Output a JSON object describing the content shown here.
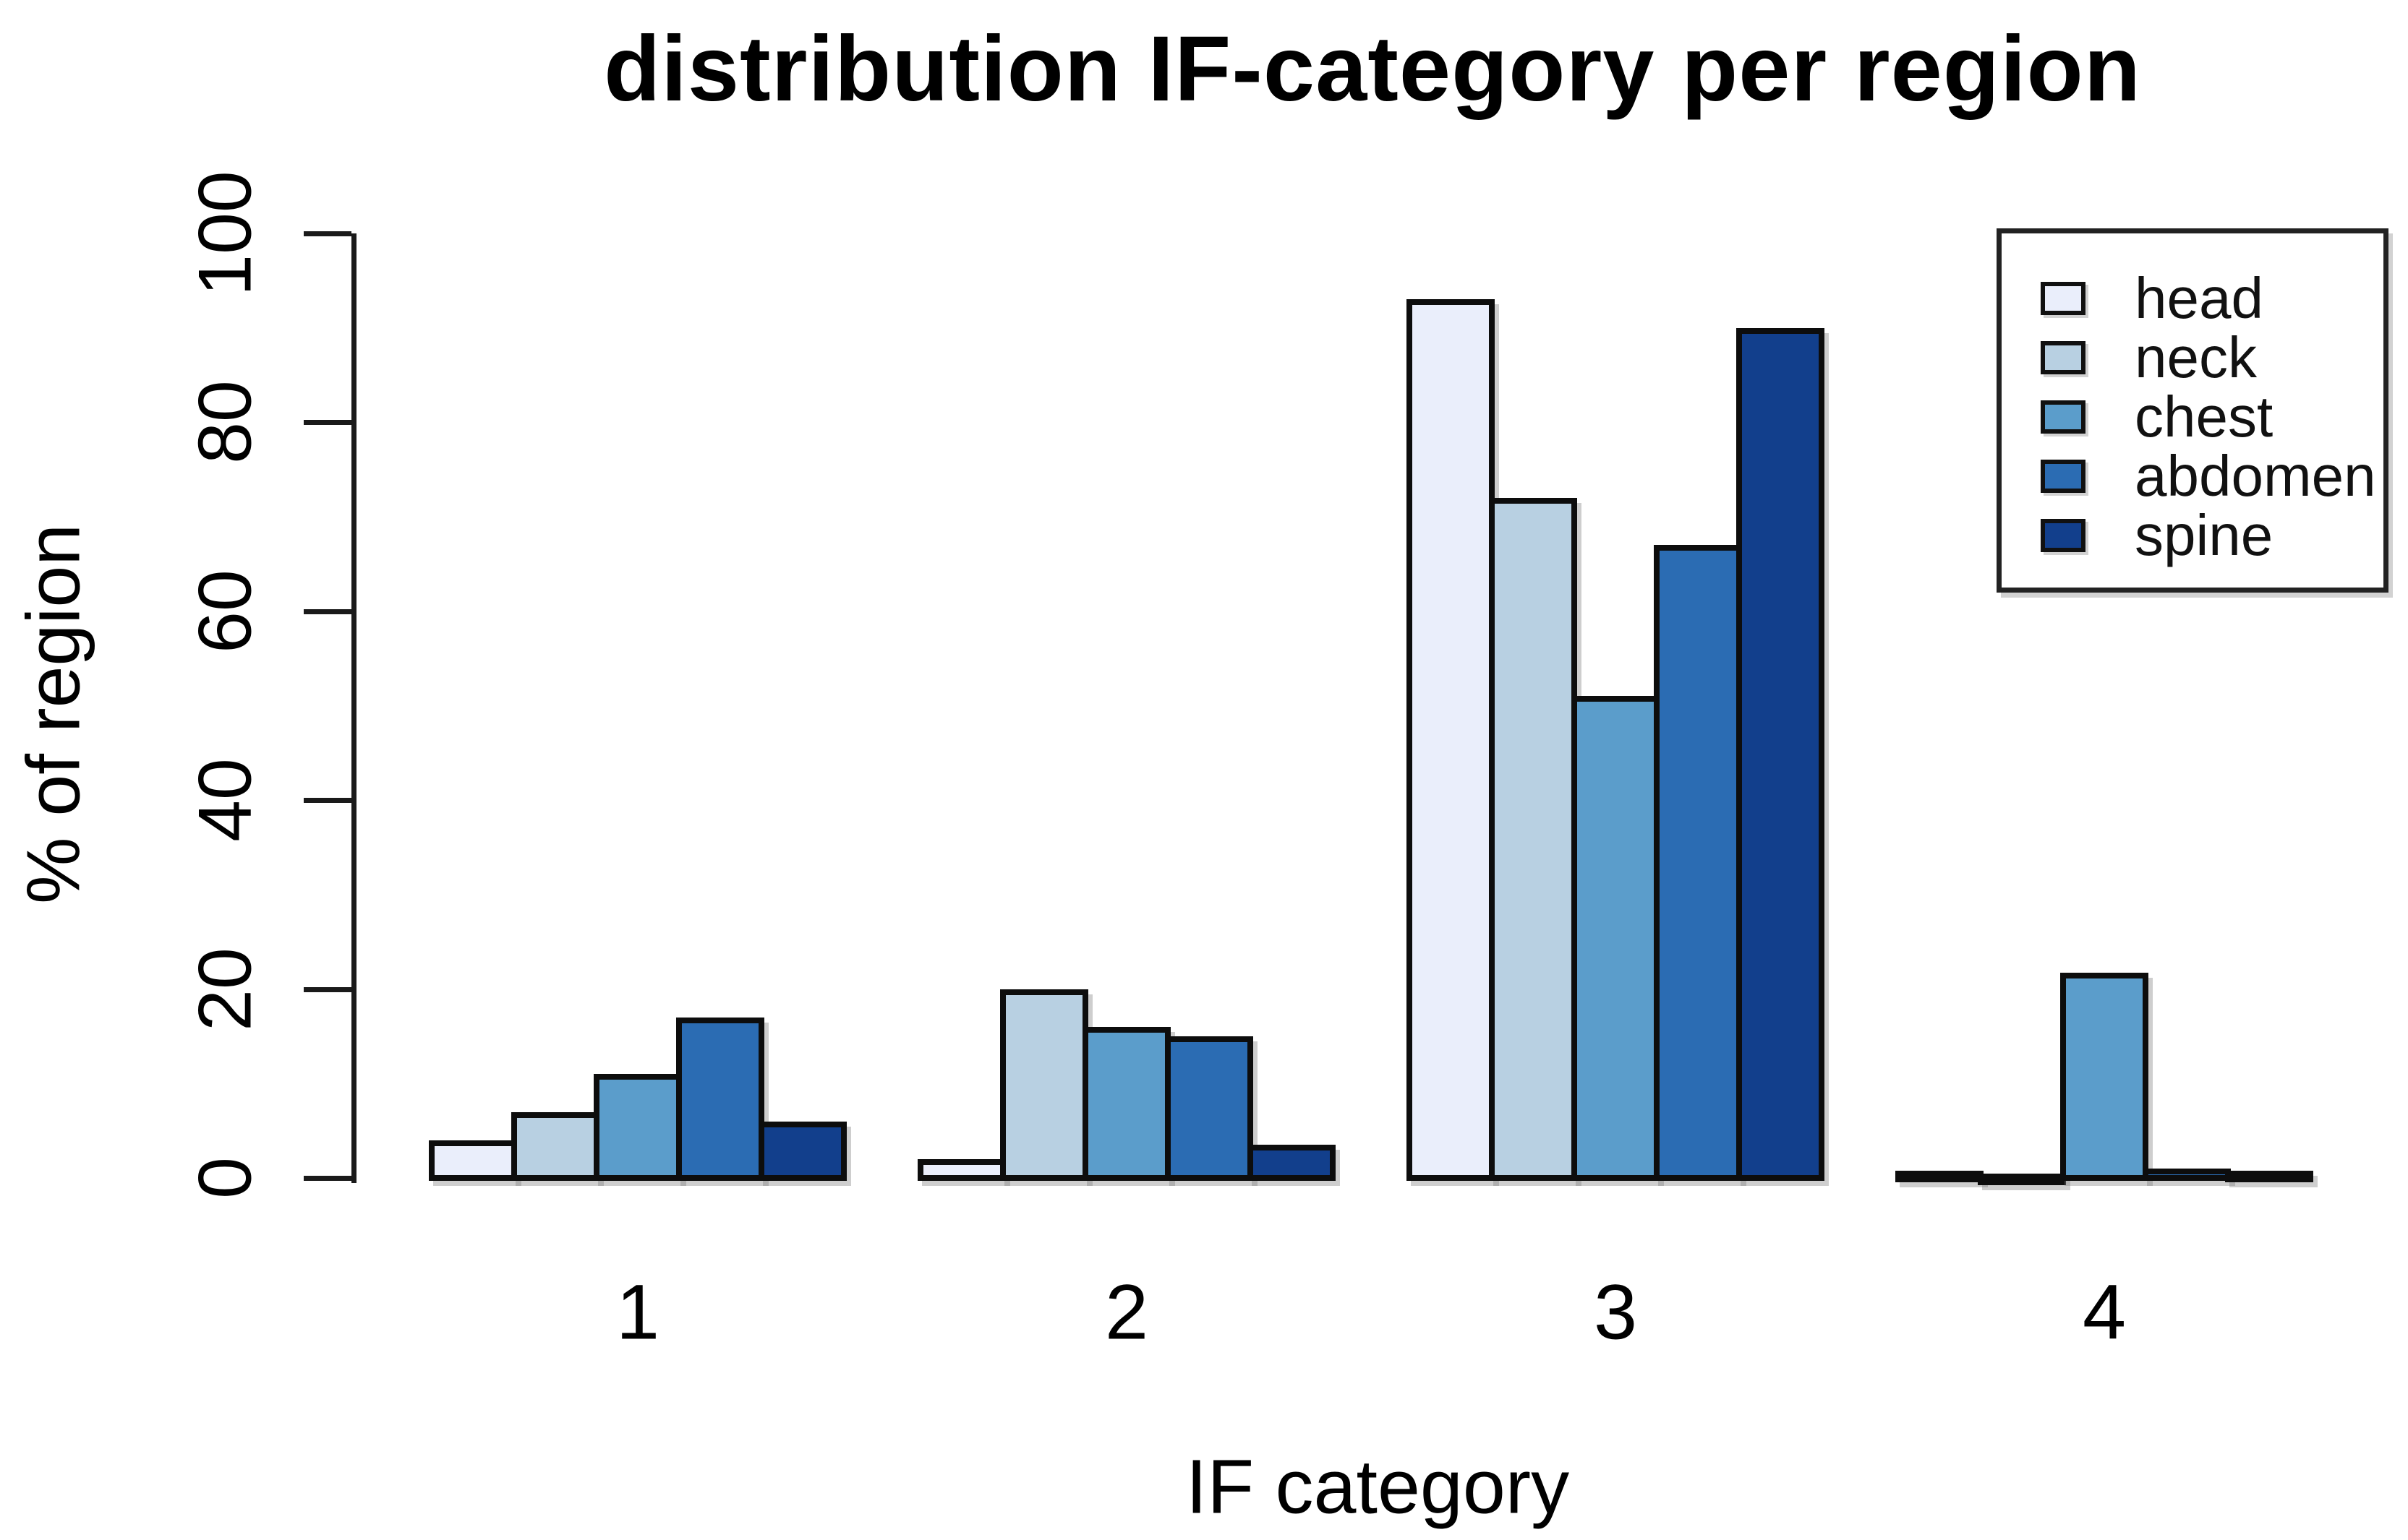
{
  "chart_data": {
    "type": "bar",
    "title": "distribution IF-category per region",
    "xlabel": "IF category",
    "ylabel": "% of region",
    "categories": [
      "1",
      "2",
      "3",
      "4"
    ],
    "series": [
      {
        "name": "head",
        "color": "#eaeefb",
        "values": [
          4,
          2,
          93,
          0.8
        ]
      },
      {
        "name": "neck",
        "color": "#b8d0e2",
        "values": [
          7,
          20,
          72,
          0.3
        ]
      },
      {
        "name": "chest",
        "color": "#5b9dcb",
        "values": [
          11,
          16,
          51,
          21.7
        ]
      },
      {
        "name": "abdomen",
        "color": "#2b6cb3",
        "values": [
          17,
          15,
          67,
          1
        ]
      },
      {
        "name": "spine",
        "color": "#123f8c",
        "values": [
          6,
          3.5,
          90,
          0.8
        ]
      }
    ],
    "ylim": [
      0,
      100
    ],
    "yticks": [
      0,
      20,
      40,
      60,
      80,
      100
    ],
    "grid": false,
    "legend_position": "top-right",
    "bar_border_color": "#0d0d0d",
    "axis_color": "#1a1a1a"
  }
}
